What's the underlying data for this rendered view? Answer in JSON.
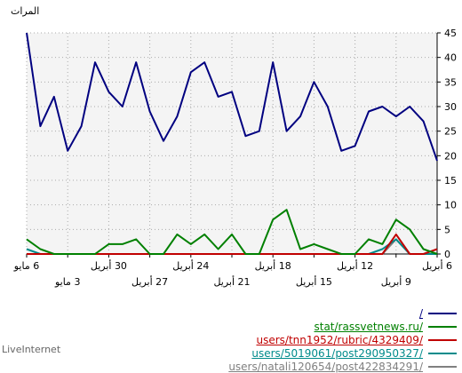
{
  "chart_data": {
    "type": "line",
    "ylabel": "المرات",
    "ylim": [
      0,
      45
    ],
    "yticks": [
      0,
      5,
      10,
      15,
      20,
      25,
      30,
      35,
      40,
      45
    ],
    "grid": true,
    "x_ticks_upper": [
      "6 مايو",
      "30 أبريل",
      "24 أبريل",
      "18 أبريل",
      "12 أبريل",
      "6 أبريل"
    ],
    "x_ticks_lower": [
      "3 مايو",
      "27 أبريل",
      "21 أبريل",
      "15 أبريل",
      "9 أبريل"
    ],
    "series": [
      {
        "name": "/",
        "color": "#000080",
        "values": [
          45,
          26,
          32,
          21,
          26,
          39,
          33,
          30,
          39,
          29,
          23,
          28,
          37,
          39,
          32,
          33,
          24,
          25,
          39,
          25,
          28,
          35,
          30,
          21,
          22,
          29,
          30,
          28,
          30,
          27,
          19
        ]
      },
      {
        "name": "stat/rassvetnews.ru/",
        "color": "#008000",
        "values": [
          3,
          1,
          0,
          0,
          0,
          0,
          2,
          2,
          3,
          0,
          0,
          4,
          2,
          4,
          1,
          4,
          0,
          0,
          7,
          9,
          1,
          2,
          1,
          0,
          0,
          3,
          2,
          7,
          5,
          1,
          0
        ]
      },
      {
        "name": "users/tnn1952/rubric/4329409/",
        "color": "#c00000",
        "values": [
          0,
          0,
          0,
          0,
          0,
          0,
          0,
          0,
          0,
          0,
          0,
          0,
          0,
          0,
          0,
          0,
          0,
          0,
          0,
          0,
          0,
          0,
          0,
          0,
          0,
          0,
          0,
          4,
          0,
          0,
          1
        ]
      },
      {
        "name": "users/5019061/post290950327/",
        "color": "#008b8b",
        "values": [
          1,
          0,
          0,
          0,
          0,
          0,
          0,
          0,
          0,
          0,
          0,
          0,
          0,
          0,
          0,
          0,
          0,
          0,
          0,
          0,
          0,
          0,
          0,
          0,
          0,
          0,
          1,
          3,
          0,
          0,
          0
        ]
      },
      {
        "name": "users/natali120654/post422834291/",
        "color": "#808080",
        "values": [
          0,
          0,
          0,
          0,
          0,
          0,
          0,
          0,
          0,
          0,
          0,
          0,
          0,
          0,
          0,
          0,
          0,
          0,
          0,
          0,
          0,
          0,
          0,
          0,
          0,
          0,
          0,
          3,
          0,
          0,
          0
        ]
      }
    ]
  },
  "footer": {
    "brand": "LiveInternet"
  }
}
